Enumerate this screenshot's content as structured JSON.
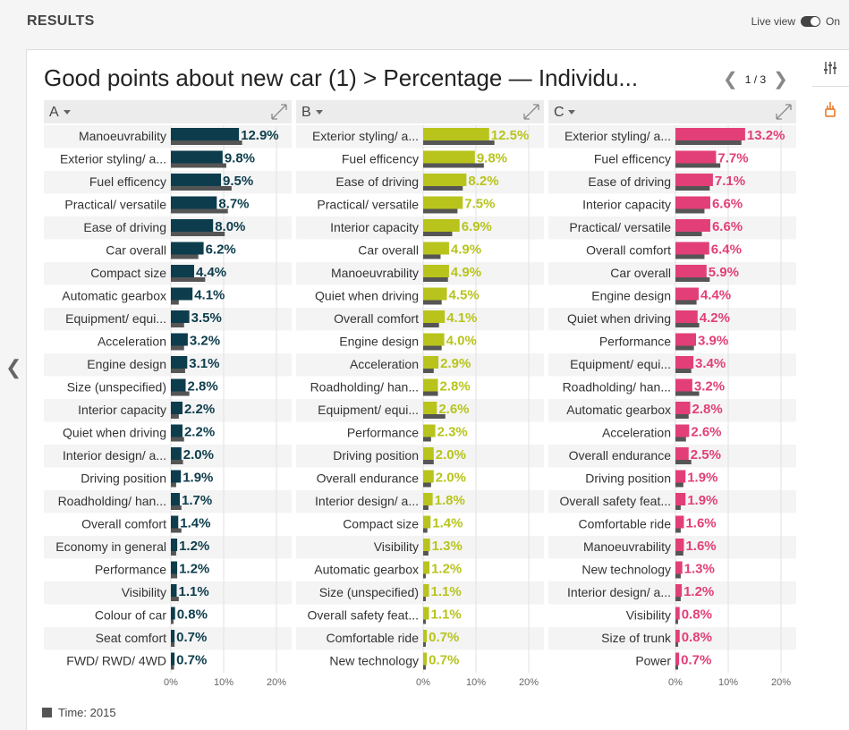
{
  "header": {
    "title": "RESULTS",
    "live_view_label": "Live view",
    "toggle_state": "On"
  },
  "chart_header": {
    "title": "Good points about new car (1) > Percentage — Individu...",
    "page": "1 / 3"
  },
  "legend": {
    "label": "Time: 2015",
    "color": "#555555"
  },
  "chart_data": [
    {
      "type": "bar",
      "name": "A",
      "color": "#0d3d4c",
      "compare_color": "#555555",
      "xlim": [
        0,
        20
      ],
      "ticks": [
        "0%",
        "10%",
        "20%"
      ],
      "categories": [
        "Manoeuvrability",
        "Exterior styling/ a...",
        "Fuel efficency",
        "Practical/ versatile",
        "Ease of driving",
        "Car overall",
        "Compact size",
        "Automatic gearbox",
        "Equipment/ equi...",
        "Acceleration",
        "Engine design",
        "Size (unspecified)",
        "Interior capacity",
        "Quiet when driving",
        "Interior design/ a...",
        "Driving position",
        "Roadholding/ han...",
        "Overall comfort",
        "Economy in general",
        "Performance",
        "Visibility",
        "Colour of car",
        "Seat comfort",
        "FWD/ RWD/ 4WD"
      ],
      "values": [
        12.9,
        9.8,
        9.5,
        8.7,
        8.0,
        6.2,
        4.4,
        4.1,
        3.5,
        3.2,
        3.1,
        2.8,
        2.2,
        2.2,
        2.0,
        1.9,
        1.7,
        1.4,
        1.2,
        1.2,
        1.1,
        0.8,
        0.7,
        0.7
      ],
      "labels": [
        "12.9%",
        "9.8%",
        "9.5%",
        "8.7%",
        "8.0%",
        "6.2%",
        "4.4%",
        "4.1%",
        "3.5%",
        "3.2%",
        "3.1%",
        "2.8%",
        "2.2%",
        "2.2%",
        "2.0%",
        "1.9%",
        "1.7%",
        "1.4%",
        "1.2%",
        "1.2%",
        "1.1%",
        "0.8%",
        "0.7%",
        "0.7%"
      ],
      "compare_values": [
        13.5,
        10.5,
        11.5,
        10.8,
        10.2,
        5.2,
        6.5,
        1.5,
        2.5,
        2.5,
        2.7,
        3.5,
        1.5,
        2.5,
        2.3,
        1.0,
        2.0,
        2.0,
        1.0,
        1.2,
        1.5,
        0.5,
        0.7,
        0.6
      ]
    },
    {
      "type": "bar",
      "name": "B",
      "color": "#b8c41c",
      "compare_color": "#555555",
      "xlim": [
        0,
        20
      ],
      "ticks": [
        "0%",
        "10%",
        "20%"
      ],
      "categories": [
        "Exterior styling/ a...",
        "Fuel efficency",
        "Ease of driving",
        "Practical/ versatile",
        "Interior capacity",
        "Car overall",
        "Manoeuvrability",
        "Quiet when driving",
        "Overall comfort",
        "Engine design",
        "Acceleration",
        "Roadholding/ han...",
        "Equipment/ equi...",
        "Performance",
        "Driving position",
        "Overall endurance",
        "Interior design/ a...",
        "Compact size",
        "Visibility",
        "Automatic gearbox",
        "Size (unspecified)",
        "Overall safety feat...",
        "Comfortable ride",
        "New technology"
      ],
      "values": [
        12.5,
        9.8,
        8.2,
        7.5,
        6.9,
        4.9,
        4.9,
        4.5,
        4.1,
        4.0,
        2.9,
        2.8,
        2.6,
        2.3,
        2.0,
        2.0,
        1.8,
        1.4,
        1.3,
        1.2,
        1.1,
        1.1,
        0.7,
        0.7
      ],
      "labels": [
        "12.5%",
        "9.8%",
        "8.2%",
        "7.5%",
        "6.9%",
        "4.9%",
        "4.9%",
        "4.5%",
        "4.1%",
        "4.0%",
        "2.9%",
        "2.8%",
        "2.6%",
        "2.3%",
        "2.0%",
        "2.0%",
        "1.8%",
        "1.4%",
        "1.3%",
        "1.2%",
        "1.1%",
        "1.1%",
        "0.7%",
        "0.7%"
      ],
      "compare_values": [
        13.5,
        11.5,
        7.5,
        6.5,
        5.5,
        3.3,
        4.7,
        3.5,
        3.0,
        3.5,
        2.0,
        2.8,
        4.2,
        1.5,
        2.0,
        1.5,
        1.0,
        0.8,
        1.0,
        0.5,
        0.5,
        0.5,
        0.5,
        0.5
      ]
    },
    {
      "type": "bar",
      "name": "C",
      "color": "#e23f78",
      "compare_color": "#555555",
      "xlim": [
        0,
        20
      ],
      "ticks": [
        "0%",
        "10%",
        "20%"
      ],
      "categories": [
        "Exterior styling/ a...",
        "Fuel efficency",
        "Ease of driving",
        "Interior capacity",
        "Practical/ versatile",
        "Overall comfort",
        "Car overall",
        "Engine design",
        "Quiet when driving",
        "Performance",
        "Equipment/ equi...",
        "Roadholding/ han...",
        "Automatic gearbox",
        "Acceleration",
        "Overall endurance",
        "Driving position",
        "Overall safety feat...",
        "Comfortable ride",
        "Manoeuvrability",
        "New technology",
        "Interior design/ a...",
        "Visibility",
        "Size of trunk",
        "Power"
      ],
      "values": [
        13.2,
        7.7,
        7.1,
        6.6,
        6.6,
        6.4,
        5.9,
        4.4,
        4.2,
        3.9,
        3.4,
        3.2,
        2.8,
        2.6,
        2.5,
        1.9,
        1.9,
        1.6,
        1.6,
        1.3,
        1.2,
        0.8,
        0.8,
        0.7
      ],
      "labels": [
        "13.2%",
        "7.7%",
        "7.1%",
        "6.6%",
        "6.6%",
        "6.4%",
        "5.9%",
        "4.4%",
        "4.2%",
        "3.9%",
        "3.4%",
        "3.2%",
        "2.8%",
        "2.6%",
        "2.5%",
        "1.9%",
        "1.9%",
        "1.6%",
        "1.6%",
        "1.3%",
        "1.2%",
        "0.8%",
        "0.8%",
        "0.7%"
      ],
      "compare_values": [
        12.5,
        8.5,
        6.5,
        5.5,
        5.0,
        5.5,
        6.5,
        4.0,
        4.5,
        3.5,
        3.0,
        4.5,
        2.5,
        2.0,
        3.0,
        1.5,
        1.0,
        1.0,
        1.5,
        1.0,
        1.0,
        0.5,
        0.5,
        0.5
      ]
    }
  ]
}
